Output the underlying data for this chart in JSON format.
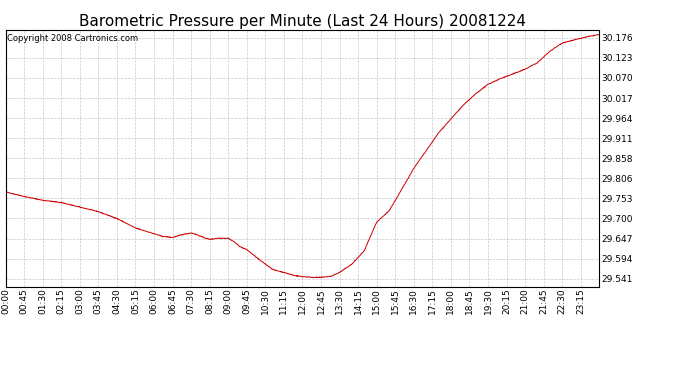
{
  "title": "Barometric Pressure per Minute (Last 24 Hours) 20081224",
  "copyright": "Copyright 2008 Cartronics.com",
  "background_color": "#ffffff",
  "plot_background_color": "#ffffff",
  "line_color": "#cc0000",
  "grid_color": "#c8c8c8",
  "yticks": [
    29.541,
    29.594,
    29.647,
    29.7,
    29.753,
    29.806,
    29.858,
    29.911,
    29.964,
    30.017,
    30.07,
    30.123,
    30.176
  ],
  "ylim": [
    29.52,
    30.196
  ],
  "xtick_labels": [
    "00:00",
    "00:45",
    "01:30",
    "02:15",
    "03:00",
    "03:45",
    "04:30",
    "05:15",
    "06:00",
    "06:45",
    "07:30",
    "08:15",
    "09:00",
    "09:45",
    "10:30",
    "11:15",
    "12:00",
    "12:45",
    "13:30",
    "14:15",
    "15:00",
    "15:45",
    "16:30",
    "17:15",
    "18:00",
    "18:45",
    "19:30",
    "20:15",
    "21:00",
    "21:45",
    "22:30",
    "23:15"
  ],
  "title_fontsize": 11,
  "tick_fontsize": 6.5,
  "copyright_fontsize": 6,
  "control_x": [
    0,
    45,
    90,
    135,
    180,
    225,
    270,
    315,
    360,
    380,
    405,
    430,
    450,
    465,
    480,
    495,
    515,
    530,
    540,
    555,
    570,
    585,
    600,
    615,
    630,
    650,
    675,
    700,
    720,
    745,
    765,
    790,
    810,
    840,
    870,
    900,
    930,
    960,
    990,
    1020,
    1050,
    1080,
    1110,
    1140,
    1170,
    1200,
    1230,
    1260,
    1290,
    1320,
    1350,
    1380,
    1410,
    1439
  ],
  "control_y": [
    29.77,
    29.758,
    29.748,
    29.742,
    29.73,
    29.718,
    29.7,
    29.675,
    29.66,
    29.653,
    29.65,
    29.658,
    29.662,
    29.657,
    29.65,
    29.645,
    29.648,
    29.648,
    29.648,
    29.638,
    29.625,
    29.618,
    29.605,
    29.592,
    29.58,
    29.565,
    29.558,
    29.55,
    29.547,
    29.545,
    29.545,
    29.548,
    29.558,
    29.58,
    29.615,
    29.69,
    29.72,
    29.775,
    29.832,
    29.878,
    29.925,
    29.962,
    29.998,
    30.028,
    30.053,
    30.068,
    30.08,
    30.093,
    30.11,
    30.14,
    30.162,
    30.17,
    30.178,
    30.184
  ]
}
